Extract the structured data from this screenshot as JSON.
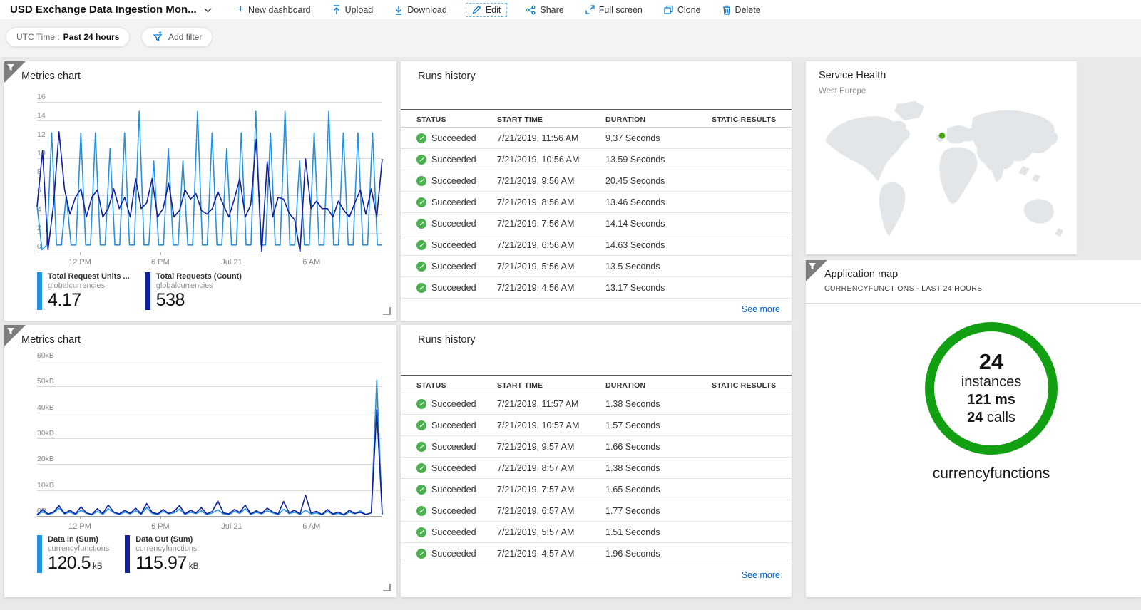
{
  "toolbar": {
    "title": "USD Exchange Data Ingestion Mon...",
    "items": [
      {
        "label": "New dashboard",
        "icon": "plus-icon"
      },
      {
        "label": "Upload",
        "icon": "upload-icon"
      },
      {
        "label": "Download",
        "icon": "download-icon"
      },
      {
        "label": "Edit",
        "icon": "pencil-icon"
      },
      {
        "label": "Share",
        "icon": "share-icon"
      },
      {
        "label": "Full screen",
        "icon": "fullscreen-icon"
      },
      {
        "label": "Clone",
        "icon": "clone-icon"
      },
      {
        "label": "Delete",
        "icon": "trash-icon"
      }
    ]
  },
  "filters": {
    "utc_label": "UTC Time :",
    "utc_value": "Past 24 hours",
    "add_filter_label": "Add filter"
  },
  "tiles": {
    "metrics1": {
      "title": "Metrics chart"
    },
    "metrics2": {
      "title": "Metrics chart"
    },
    "runs1": {
      "title": "Runs history",
      "columns": [
        "STATUS",
        "START TIME",
        "DURATION",
        "STATIC RESULTS"
      ],
      "see_more": "See more",
      "rows": [
        {
          "status": "Succeeded",
          "start": "7/21/2019, 11:56 AM",
          "duration": "9.37 Seconds"
        },
        {
          "status": "Succeeded",
          "start": "7/21/2019, 10:56 AM",
          "duration": "13.59 Seconds"
        },
        {
          "status": "Succeeded",
          "start": "7/21/2019, 9:56 AM",
          "duration": "20.45 Seconds"
        },
        {
          "status": "Succeeded",
          "start": "7/21/2019, 8:56 AM",
          "duration": "13.46 Seconds"
        },
        {
          "status": "Succeeded",
          "start": "7/21/2019, 7:56 AM",
          "duration": "14.14 Seconds"
        },
        {
          "status": "Succeeded",
          "start": "7/21/2019, 6:56 AM",
          "duration": "14.63 Seconds"
        },
        {
          "status": "Succeeded",
          "start": "7/21/2019, 5:56 AM",
          "duration": "13.5 Seconds"
        },
        {
          "status": "Succeeded",
          "start": "7/21/2019, 4:56 AM",
          "duration": "13.17 Seconds"
        }
      ]
    },
    "runs2": {
      "title": "Runs history",
      "columns": [
        "STATUS",
        "START TIME",
        "DURATION",
        "STATIC RESULTS"
      ],
      "see_more": "See more",
      "rows": [
        {
          "status": "Succeeded",
          "start": "7/21/2019, 11:57 AM",
          "duration": "1.38 Seconds"
        },
        {
          "status": "Succeeded",
          "start": "7/21/2019, 10:57 AM",
          "duration": "1.57 Seconds"
        },
        {
          "status": "Succeeded",
          "start": "7/21/2019, 9:57 AM",
          "duration": "1.66 Seconds"
        },
        {
          "status": "Succeeded",
          "start": "7/21/2019, 8:57 AM",
          "duration": "1.38 Seconds"
        },
        {
          "status": "Succeeded",
          "start": "7/21/2019, 7:57 AM",
          "duration": "1.65 Seconds"
        },
        {
          "status": "Succeeded",
          "start": "7/21/2019, 6:57 AM",
          "duration": "1.77 Seconds"
        },
        {
          "status": "Succeeded",
          "start": "7/21/2019, 5:57 AM",
          "duration": "1.51 Seconds"
        },
        {
          "status": "Succeeded",
          "start": "7/21/2019, 4:57 AM",
          "duration": "1.96 Seconds"
        }
      ]
    },
    "service_health": {
      "title": "Service Health",
      "region": "West Europe"
    },
    "app_map": {
      "title": "Application map",
      "subtitle": "CURRENCYFUNCTIONS - LAST 24 HOURS",
      "instances_count": "24",
      "instances_label": "instances",
      "latency": "121 ms",
      "calls_count": "24",
      "calls_label": " calls",
      "function_name": "currencyfunctions"
    }
  },
  "colors": {
    "accent_blue": "#0078d4",
    "series_light_blue": "#2492df",
    "series_dark_blue": "#10219e",
    "succeeded_green": "#4caf50",
    "ring_green": "#12a012",
    "link_blue": "#0065d1"
  },
  "chart_data": [
    {
      "type": "line",
      "title": "Metrics chart",
      "ylabel": "",
      "ylim": [
        0,
        16
      ],
      "y_ticks": [
        "16",
        "14",
        "12",
        "10",
        "8",
        "6",
        "4",
        "2",
        "0"
      ],
      "x_ticks": [
        {
          "label": "12 PM",
          "f": 0.124
        },
        {
          "label": "6 PM",
          "f": 0.357
        },
        {
          "label": "Jul 21",
          "f": 0.564
        },
        {
          "label": "6 AM",
          "f": 0.795
        }
      ],
      "grid": true,
      "legend_position": "bottom",
      "series": [
        {
          "metric": "Total Request Units ...",
          "resource": "globalcurrencies",
          "display_value": "4.17",
          "display_unit": "",
          "color": "#2492df",
          "values": [
            4.9,
            0.2,
            0.7,
            12.7,
            0.7,
            0.7,
            6,
            0.7,
            0.7,
            12.7,
            0.7,
            0.7,
            12.7,
            0.7,
            0.7,
            11,
            0.7,
            0.7,
            12.7,
            0.7,
            0.7,
            15,
            0.7,
            0.7,
            9.7,
            0.7,
            0.7,
            11,
            0.7,
            0.7,
            9.7,
            0.7,
            0.7,
            15,
            0.7,
            0.7,
            12.7,
            0.7,
            0.7,
            11,
            0.7,
            0.7,
            12.7,
            0.7,
            0.7,
            15,
            0.7,
            0.7,
            12.7,
            0.7,
            0.7,
            15,
            0.7,
            0.7,
            9.7,
            0.7,
            0.7,
            12.7,
            0.7,
            0.7,
            15,
            0.7,
            0.7,
            12.7,
            0.7,
            0.7,
            12.7,
            0.7,
            0.7,
            12.7,
            0.7,
            0.7
          ]
        },
        {
          "metric": "Total Requests (Count)",
          "resource": "globalcurrencies",
          "display_value": "538",
          "display_unit": "",
          "color": "#10219e",
          "values": [
            4.8,
            10.8,
            0.2,
            5.0,
            12.8,
            6.7,
            4.0,
            5.8,
            6.7,
            3.7,
            5.8,
            6.6,
            3.7,
            4.6,
            6.7,
            4.6,
            5.8,
            3.7,
            7.8,
            4.6,
            5.2,
            7.8,
            3.7,
            4.6,
            7.3,
            3.7,
            4.4,
            6.6,
            5.6,
            6.2,
            4.4,
            4.0,
            4.6,
            6.4,
            5.0,
            3.7,
            5.6,
            7.8,
            3.7,
            5.0,
            12.0,
            0.0,
            9.6,
            3.7,
            5.8,
            5.6,
            4.1,
            3.4,
            0.0,
            9.9,
            4.6,
            5.4,
            4.6,
            4.6,
            3.7,
            5.4,
            4.4,
            3.7,
            5.2,
            6.6,
            4.0,
            6.7,
            3.7,
            9.9
          ]
        }
      ]
    },
    {
      "type": "line",
      "title": "Metrics chart",
      "ylabel": "",
      "ylim": [
        0,
        60
      ],
      "y_ticks": [
        "60kB",
        "50kB",
        "40kB",
        "30kB",
        "20kB",
        "10kB",
        "0B"
      ],
      "x_ticks": [
        {
          "label": "12 PM",
          "f": 0.124
        },
        {
          "label": "6 PM",
          "f": 0.357
        },
        {
          "label": "Jul 21",
          "f": 0.564
        },
        {
          "label": "6 AM",
          "f": 0.795
        }
      ],
      "grid": true,
      "legend_position": "bottom",
      "series": [
        {
          "metric": "Data In (Sum)",
          "resource": "currencyfunctions",
          "display_value": "120.5",
          "display_unit": "kB",
          "color": "#2492df",
          "values": [
            0.3,
            1.8,
            0.5,
            1.2,
            3.0,
            0.8,
            1.5,
            0.5,
            2.2,
            1.0,
            0.4,
            1.8,
            0.6,
            2.8,
            1.2,
            0.5,
            1.5,
            0.8,
            2.0,
            0.6,
            3.2,
            1.0,
            0.5,
            1.8,
            0.8,
            1.2,
            2.6,
            0.6,
            1.5,
            0.9,
            2.0,
            0.5,
            1.2,
            2.4,
            0.8,
            0.5,
            1.8,
            1.0,
            2.8,
            0.6,
            1.4,
            0.8,
            2.0,
            1.2,
            0.5,
            2.6,
            0.9,
            1.5,
            0.6,
            2.2,
            0.8,
            1.2,
            0.4,
            1.8,
            0.6,
            1.0,
            0.3,
            1.5,
            0.8,
            2.0,
            0.6,
            1.2,
            52.5,
            0.5
          ]
        },
        {
          "metric": "Data Out (Sum)",
          "resource": "currencyfunctions",
          "display_value": "115.97",
          "display_unit": "kB",
          "color": "#10219e",
          "values": [
            0.5,
            2.5,
            0.8,
            1.5,
            4.0,
            1.0,
            2.2,
            0.8,
            3.5,
            1.2,
            0.6,
            2.8,
            1.0,
            4.2,
            1.5,
            0.8,
            2.2,
            1.0,
            3.0,
            0.8,
            4.8,
            1.4,
            0.8,
            2.5,
            1.0,
            1.8,
            4.0,
            0.8,
            2.2,
            1.2,
            3.2,
            0.8,
            1.8,
            5.8,
            1.2,
            0.8,
            2.5,
            1.4,
            4.2,
            0.8,
            2.0,
            1.0,
            3.0,
            1.6,
            0.8,
            5.6,
            1.2,
            2.2,
            0.8,
            8.0,
            1.2,
            1.8,
            0.6,
            2.5,
            0.8,
            1.5,
            0.5,
            2.2,
            1.0,
            1.4,
            0.6,
            1.2,
            41.0,
            0.8
          ]
        }
      ]
    }
  ]
}
